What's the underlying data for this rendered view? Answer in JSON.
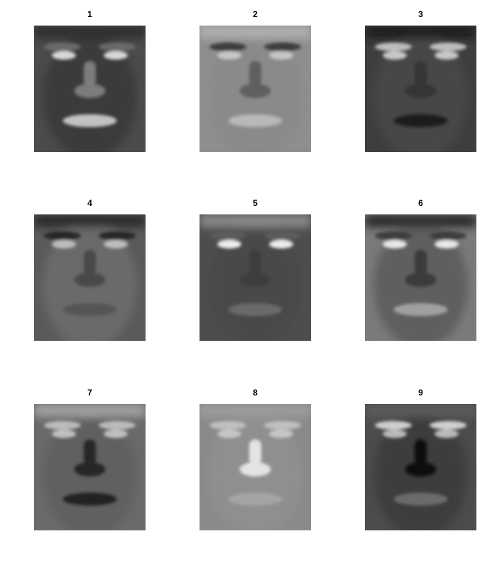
{
  "panels": [
    {
      "title": "1",
      "tone": {
        "background": "#4b4b4b",
        "skin": "#3a3a3a",
        "hair": "#2e2e2e",
        "brow": "#6a6a6a",
        "eye": "#d8d8d8",
        "nose": "#7c7c7c",
        "mouth": "#c2c2c2"
      }
    },
    {
      "title": "2",
      "tone": {
        "background": "#8e8e8e",
        "skin": "#8a8a8a",
        "hair": "#b0b0b0",
        "brow": "#3e3e3e",
        "eye": "#c6c6c6",
        "nose": "#5e5e5e",
        "mouth": "#b8b8b8"
      }
    },
    {
      "title": "3",
      "tone": {
        "background": "#3e3e3e",
        "skin": "#474747",
        "hair": "#1e1e1e",
        "brow": "#bdbdbd",
        "eye": "#c7c7c7",
        "nose": "#353535",
        "mouth": "#1b1b1b"
      }
    },
    {
      "title": "4",
      "tone": {
        "background": "#5a5a5a",
        "skin": "#6b6b6b",
        "hair": "#2a2a2a",
        "brow": "#262626",
        "eye": "#bdbdbd",
        "nose": "#4a4a4a",
        "mouth": "#555555"
      }
    },
    {
      "title": "5",
      "tone": {
        "background": "#4d4d4d",
        "skin": "#4a4a4a",
        "hair": "#8a8a8a",
        "brow": "#5c5c5c",
        "eye": "#ededed",
        "nose": "#3c3c3c",
        "mouth": "#6a6a6a"
      }
    },
    {
      "title": "6",
      "tone": {
        "background": "#7a7a7a",
        "skin": "#5e5e5e",
        "hair": "#2c2c2c",
        "brow": "#3c3c3c",
        "eye": "#e8e8e8",
        "nose": "#3a3a3a",
        "mouth": "#a0a0a0"
      }
    },
    {
      "title": "7",
      "tone": {
        "background": "#6a6a6a",
        "skin": "#606060",
        "hair": "#a2a2a2",
        "brow": "#bbbbbb",
        "eye": "#c0c0c0",
        "nose": "#262626",
        "mouth": "#202020"
      }
    },
    {
      "title": "8",
      "tone": {
        "background": "#8a8a8a",
        "skin": "#8f8f8f",
        "hair": "#9c9c9c",
        "brow": "#c0c0c0",
        "eye": "#c6c6c6",
        "nose": "#e4e4e4",
        "mouth": "#a4a4a4"
      }
    },
    {
      "title": "9",
      "tone": {
        "background": "#4c4c4c",
        "skin": "#3c3c3c",
        "hair": "#5c5c5c",
        "brow": "#cfcfcf",
        "eye": "#bababa",
        "nose": "#111111",
        "mouth": "#6a6a6a"
      }
    }
  ]
}
